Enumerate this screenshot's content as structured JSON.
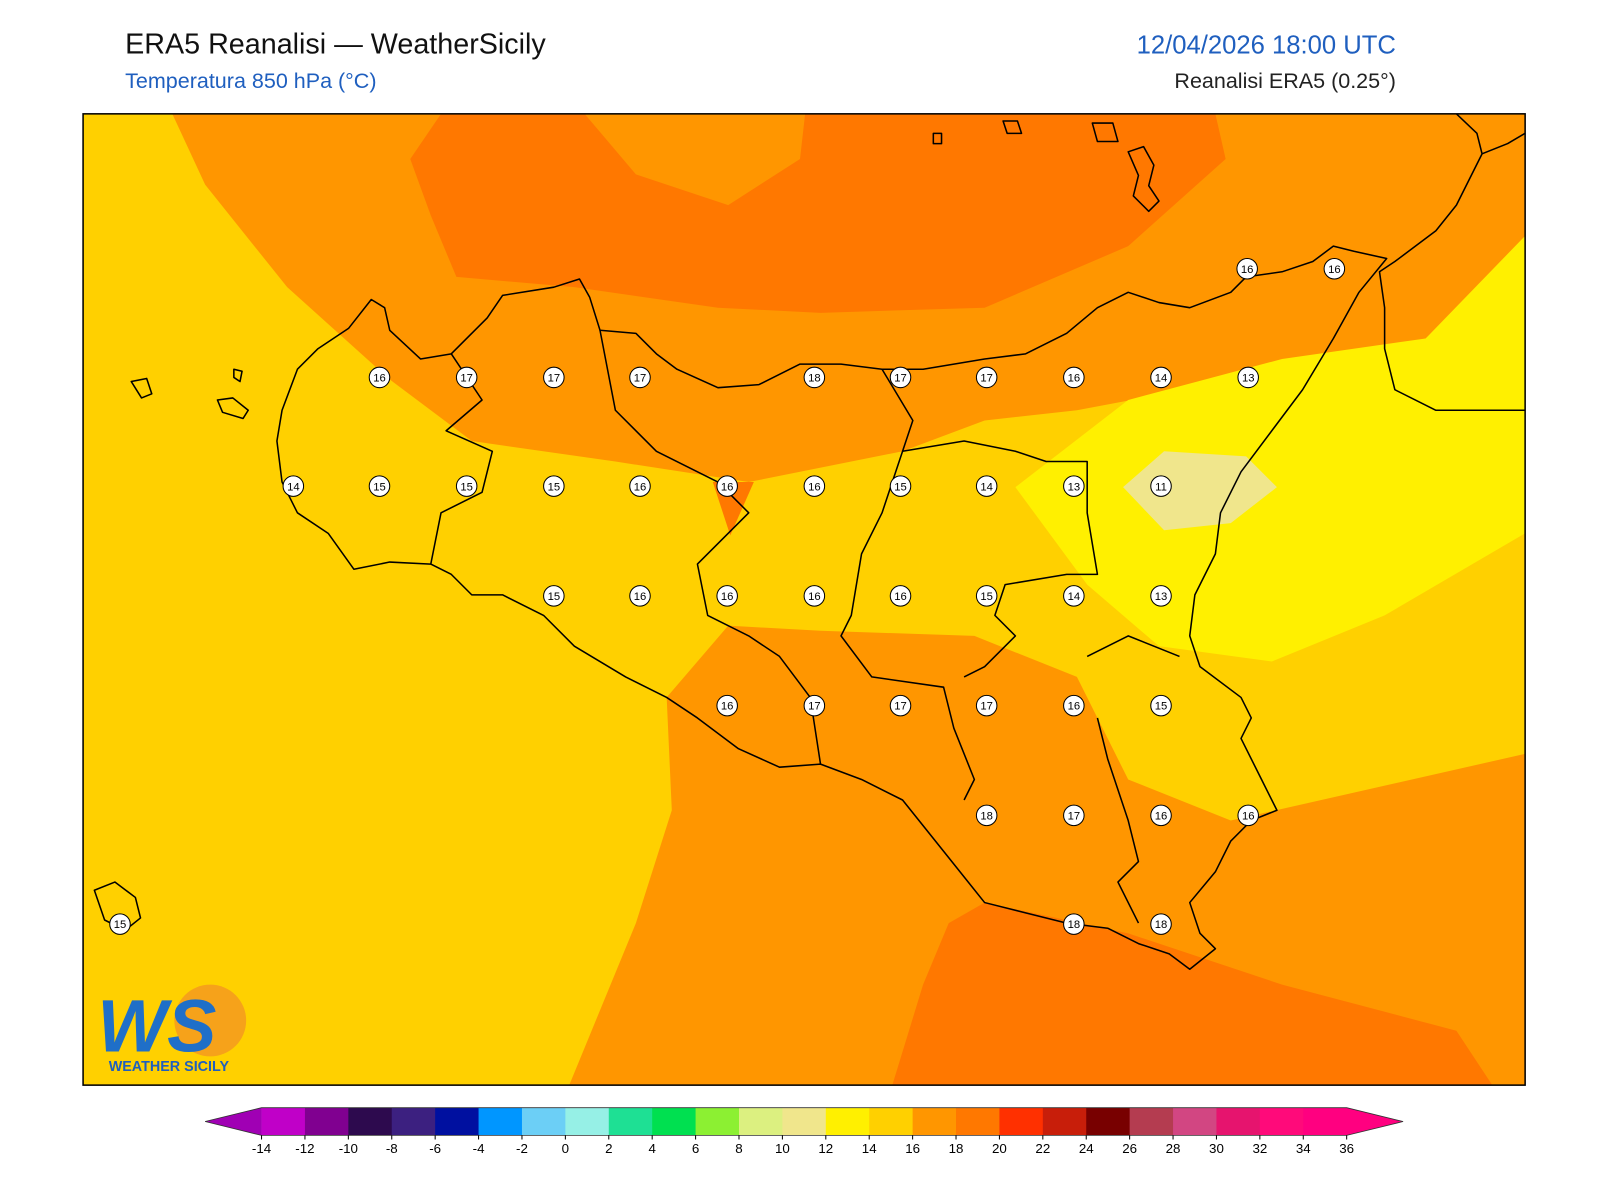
{
  "header": {
    "title": "ERA5 Reanalisi — WeatherSicily",
    "subtitle": "Temperatura 850 hPa (°C)",
    "datetime": "12/04/2026 18:00 UTC",
    "source": "Reanalisi ERA5 (0.25°)"
  },
  "stations": [
    16,
    16,
    16,
    17,
    17,
    17,
    18,
    17,
    17,
    16,
    14,
    13,
    14,
    15,
    15,
    15,
    16,
    16,
    16,
    15,
    14,
    13,
    11,
    15,
    16,
    16,
    16,
    16,
    15,
    14,
    13,
    16,
    17,
    17,
    17,
    16,
    15,
    18,
    17,
    16,
    16,
    18,
    18,
    15
  ],
  "colorbar": {
    "ticks": [
      -14,
      -12,
      -10,
      -8,
      -6,
      -4,
      -2,
      0,
      2,
      4,
      6,
      8,
      10,
      12,
      14,
      16,
      18,
      20,
      22,
      24,
      26,
      28,
      30,
      32,
      34,
      36
    ],
    "colors": [
      "#c000c8",
      "#800090",
      "#2d0a4e",
      "#3c2080",
      "#0010a0",
      "#0096ff",
      "#6ccff6",
      "#96f0e6",
      "#1ee094",
      "#00e050",
      "#8cf032",
      "#dcf080",
      "#f0e68c",
      "#fff000",
      "#ffd000",
      "#ff9600",
      "#ff7800",
      "#ff3000",
      "#c81e0a",
      "#780000",
      "#b43c50",
      "#d24682",
      "#e6146e",
      "#ff0a7a",
      "#ff0080"
    ],
    "under": "#a000b4",
    "over": "#ff0080"
  },
  "logo": {
    "mark": "WS",
    "text": "WEATHER SICILY"
  }
}
